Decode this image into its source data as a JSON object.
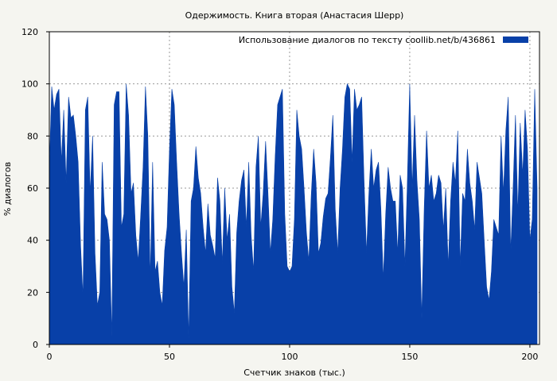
{
  "chart_data": {
    "type": "area",
    "title": "Одержимость. Книга вторая (Анастасия Шерр)",
    "xlabel": "Счетчик знаков (тыс.)",
    "ylabel": "% диалогов",
    "xlim": [
      0,
      204
    ],
    "ylim": [
      0,
      120
    ],
    "xticks": [
      0,
      50,
      100,
      150,
      200
    ],
    "yticks": [
      0,
      20,
      40,
      60,
      80,
      100,
      120
    ],
    "grid": true,
    "legend_position": "top-right",
    "series": [
      {
        "name": "Использование диалогов по тексту  coollib.net/b/436861",
        "color": "#0840a8",
        "x": [
          0,
          1,
          2,
          3,
          4,
          5,
          6,
          7,
          8,
          9,
          10,
          11,
          12,
          13,
          14,
          15,
          16,
          17,
          18,
          19,
          20,
          21,
          22,
          23,
          24,
          25,
          26,
          27,
          28,
          29,
          30,
          31,
          32,
          33,
          34,
          35,
          36,
          37,
          38,
          39,
          40,
          41,
          42,
          43,
          44,
          45,
          46,
          47,
          48,
          49,
          50,
          51,
          52,
          53,
          54,
          55,
          56,
          57,
          58,
          59,
          60,
          61,
          62,
          63,
          64,
          65,
          66,
          67,
          68,
          69,
          70,
          71,
          72,
          73,
          74,
          75,
          76,
          77,
          78,
          79,
          80,
          81,
          82,
          83,
          84,
          85,
          86,
          87,
          88,
          89,
          90,
          91,
          92,
          93,
          94,
          95,
          96,
          97,
          98,
          99,
          100,
          101,
          102,
          103,
          104,
          105,
          106,
          107,
          108,
          109,
          110,
          111,
          112,
          113,
          114,
          115,
          116,
          117,
          118,
          119,
          120,
          121,
          122,
          123,
          124,
          125,
          126,
          127,
          128,
          129,
          130,
          131,
          132,
          133,
          134,
          135,
          136,
          137,
          138,
          139,
          140,
          141,
          142,
          143,
          144,
          145,
          146,
          147,
          148,
          149,
          150,
          151,
          152,
          153,
          154,
          155,
          156,
          157,
          158,
          159,
          160,
          161,
          162,
          163,
          164,
          165,
          166,
          167,
          168,
          169,
          170,
          171,
          172,
          173,
          174,
          175,
          176,
          177,
          178,
          179,
          180,
          181,
          182,
          183,
          184,
          185,
          186,
          187,
          188,
          189,
          190,
          191,
          192,
          193,
          194,
          195,
          196,
          197,
          198,
          199,
          200,
          201,
          202,
          203
        ],
        "values": [
          67,
          99,
          90,
          96,
          98,
          70,
          90,
          62,
          95,
          87,
          88,
          80,
          70,
          38,
          18,
          90,
          95,
          58,
          80,
          35,
          15,
          20,
          70,
          50,
          48,
          40,
          3,
          92,
          97,
          97,
          45,
          50,
          100,
          88,
          58,
          62,
          42,
          32,
          49,
          68,
          99,
          80,
          25,
          70,
          28,
          32,
          20,
          15,
          36,
          45,
          75,
          98,
          92,
          70,
          50,
          35,
          22,
          44,
          2,
          55,
          60,
          76,
          64,
          58,
          45,
          35,
          54,
          42,
          38,
          33,
          64,
          55,
          31,
          60,
          40,
          50,
          22,
          12,
          43,
          55,
          63,
          67,
          45,
          70,
          42,
          28,
          68,
          80,
          45,
          58,
          78,
          58,
          35,
          48,
          72,
          92,
          95,
          98,
          50,
          30,
          28,
          30,
          48,
          90,
          80,
          75,
          60,
          43,
          32,
          57,
          75,
          62,
          35,
          39,
          49,
          56,
          58,
          72,
          88,
          52,
          35,
          60,
          75,
          95,
          100,
          98,
          70,
          98,
          90,
          92,
          95,
          62,
          35,
          58,
          75,
          60,
          67,
          70,
          52,
          25,
          50,
          68,
          60,
          55,
          55,
          35,
          65,
          60,
          30,
          62,
          100,
          60,
          88,
          63,
          48,
          10,
          52,
          82,
          60,
          65,
          55,
          58,
          65,
          62,
          44,
          60,
          30,
          55,
          70,
          62,
          82,
          30,
          58,
          55,
          75,
          62,
          55,
          44,
          70,
          64,
          58,
          40,
          22,
          17,
          28,
          48,
          45,
          42,
          80,
          58,
          82,
          95,
          35,
          60,
          88,
          50,
          85,
          65,
          90,
          75,
          40,
          48,
          98,
          60
        ]
      }
    ]
  }
}
